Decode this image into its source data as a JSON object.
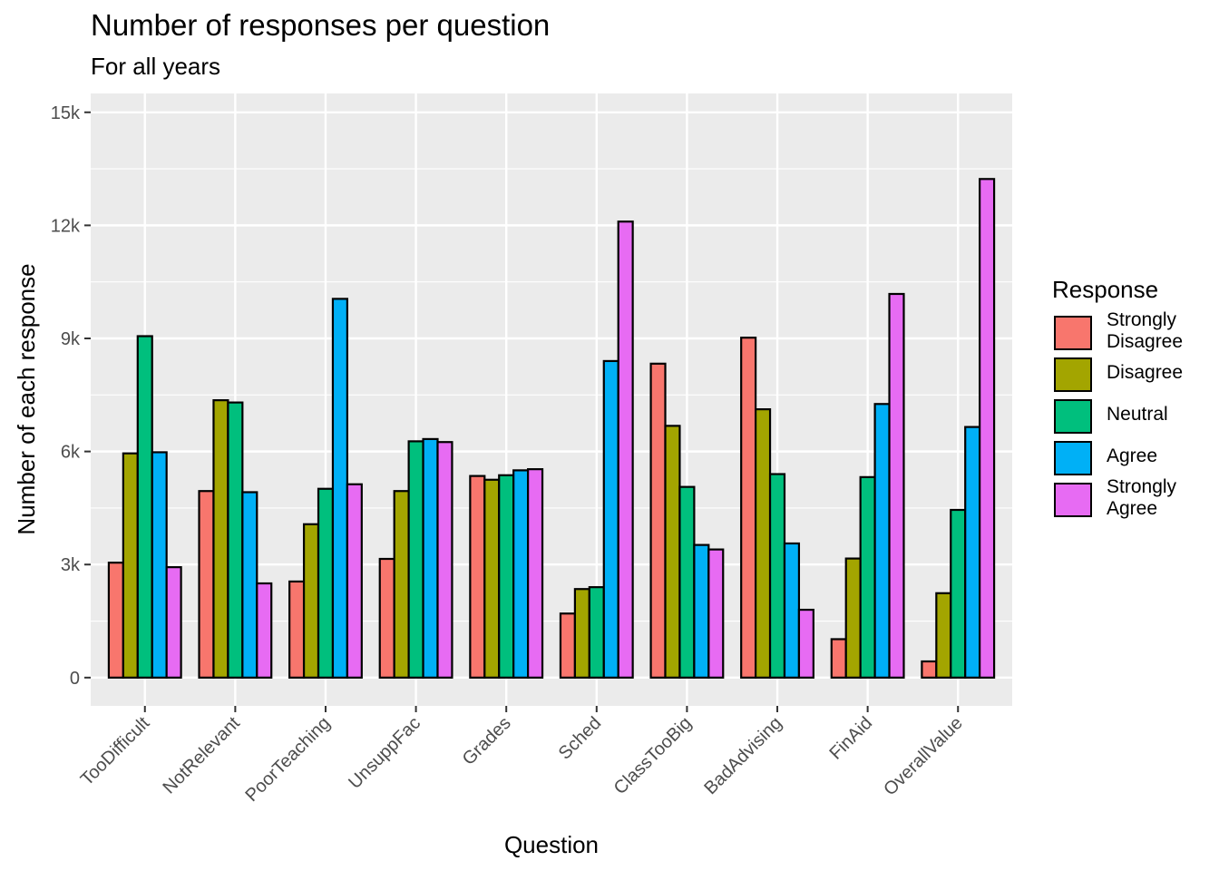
{
  "chart_data": {
    "type": "bar",
    "title": "Number of responses per question",
    "subtitle": "For all years",
    "xlabel": "Question",
    "ylabel": "Number of each response",
    "ylim": [
      -750,
      15500
    ],
    "yticks": [
      0,
      3000,
      6000,
      9000,
      12000,
      15000
    ],
    "ytick_labels": [
      "0",
      "3k",
      "6k",
      "9k",
      "12k",
      "15k"
    ],
    "grid": true,
    "legend_title": "Response",
    "legend_position": "right",
    "categories": [
      "TooDifficult",
      "NotRelevant",
      "PoorTeaching",
      "UnsuppFac",
      "Grades",
      "Sched",
      "ClassTooBig",
      "BadAdvising",
      "FinAid",
      "OverallValue"
    ],
    "series": [
      {
        "name": "Strongly Disagree",
        "label_lines": [
          "Strongly",
          "Disagree"
        ],
        "color": "#F8766D",
        "values": [
          3050,
          4950,
          2550,
          3150,
          5350,
          1700,
          8330,
          9020,
          1020,
          430
        ]
      },
      {
        "name": "Disagree",
        "label_lines": [
          "Disagree"
        ],
        "color": "#A3A500",
        "values": [
          5950,
          7360,
          4070,
          4950,
          5250,
          2350,
          6680,
          7120,
          3160,
          2240
        ]
      },
      {
        "name": "Neutral",
        "label_lines": [
          "Neutral"
        ],
        "color": "#00BF7D",
        "values": [
          9060,
          7300,
          5010,
          6270,
          5370,
          2400,
          5060,
          5400,
          5320,
          4450
        ]
      },
      {
        "name": "Agree",
        "label_lines": [
          "Agree"
        ],
        "color": "#00B0F6",
        "values": [
          5980,
          4920,
          10050,
          6330,
          5500,
          8400,
          3520,
          3560,
          7260,
          6650
        ]
      },
      {
        "name": "Strongly Agree",
        "label_lines": [
          "Strongly",
          "Agree"
        ],
        "color": "#E76BF3",
        "values": [
          2930,
          2500,
          5130,
          6250,
          5530,
          12100,
          3400,
          1800,
          10180,
          13230
        ]
      }
    ]
  }
}
